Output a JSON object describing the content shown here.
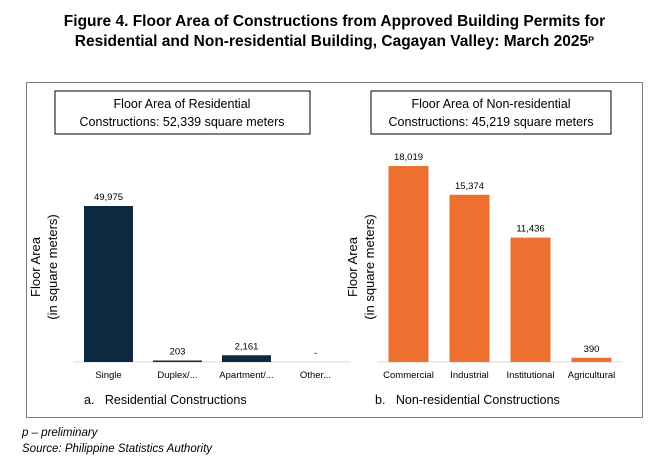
{
  "title": {
    "line1": "Figure 4. Floor Area of Constructions from Approved Building Permits for",
    "line2": "Residential and Non-residential Building, Cagayan Valley: March 2025",
    "superscript": "P"
  },
  "chart_data": [
    {
      "type": "bar",
      "box_line1": "Floor Area of Residential",
      "box_line2": "Constructions: 52,339 square meters",
      "ylabel_line1": "Floor Area",
      "ylabel_line2": "(in square meters)",
      "caption": "a.   Residential Constructions",
      "categories": [
        "Single",
        "Duplex/...",
        "Apartment/...",
        "Other..."
      ],
      "values": [
        49975,
        203,
        2161,
        0
      ],
      "data_labels": [
        "49,975",
        "203",
        "2,161",
        "-"
      ],
      "ylim": [
        0,
        52000
      ],
      "color": "#0d2841"
    },
    {
      "type": "bar",
      "box_line1": "Floor Area of Non-residential",
      "box_line2": "Constructions: 45,219 square meters",
      "ylabel_line1": "Floor Area",
      "ylabel_line2": "(in square meters)",
      "caption": "b.   Non-residential Constructions",
      "categories": [
        "Commercial",
        "Industrial",
        "Institutional",
        "Agricultural"
      ],
      "values": [
        18019,
        15374,
        11436,
        390
      ],
      "data_labels": [
        "18,019",
        "15,374",
        "11,436",
        "390"
      ],
      "ylim": [
        0,
        18500
      ],
      "color": "#ed7031"
    }
  ],
  "footnote": "p – preliminary",
  "source": "Source: Philippine Statistics Authority"
}
